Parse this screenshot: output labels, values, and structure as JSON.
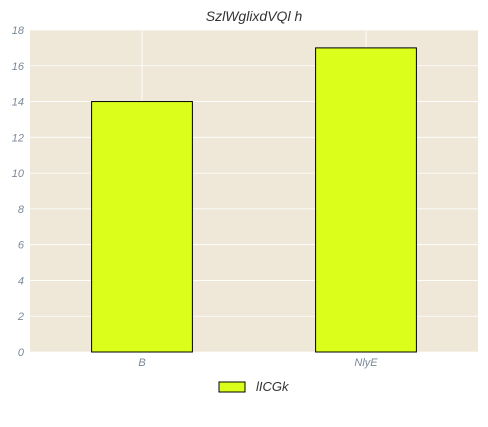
{
  "chart_data": {
    "type": "bar",
    "title": "SzlWglixdVQl h",
    "xlabel": "",
    "ylabel": "",
    "categories": [
      "B",
      "NlyE"
    ],
    "series": [
      {
        "name": "lICGk",
        "values": [
          14,
          17
        ]
      }
    ],
    "ylim": [
      0,
      18
    ],
    "yticks": [
      0,
      2,
      4,
      6,
      8,
      10,
      12,
      14,
      16,
      18
    ],
    "grid": true,
    "legend": "bottom-center",
    "colors": {
      "bar": "#dbff1a",
      "bar_edge": "#000000",
      "plot_background": "#efe8d8",
      "grid": "#ffffff"
    }
  }
}
